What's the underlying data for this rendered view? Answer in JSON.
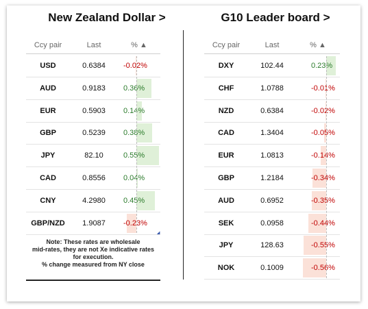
{
  "left": {
    "title": "New Zealand Dollar >",
    "headers": {
      "pair": "Ccy pair",
      "last": "Last",
      "pct": "% ▲"
    },
    "rows": [
      {
        "pair": "USD",
        "last": "0.6384",
        "pct": "-0.02%",
        "value": -0.02
      },
      {
        "pair": "AUD",
        "last": "0.9183",
        "pct": "0.36%",
        "value": 0.36
      },
      {
        "pair": "EUR",
        "last": "0.5903",
        "pct": "0.14%",
        "value": 0.14
      },
      {
        "pair": "GBP",
        "last": "0.5239",
        "pct": "0.38%",
        "value": 0.38
      },
      {
        "pair": "JPY",
        "last": "82.10",
        "pct": "0.55%",
        "value": 0.55
      },
      {
        "pair": "CAD",
        "last": "0.8556",
        "pct": "0.04%",
        "value": 0.04
      },
      {
        "pair": "CNY",
        "last": "4.2980",
        "pct": "0.45%",
        "value": 0.45
      },
      {
        "pair": "GBP/NZD",
        "last": "1.9087",
        "pct": "-0.23%",
        "value": -0.23
      }
    ],
    "note": [
      "Note: These rates are wholesale",
      "mid-rates, they are not Xe indicative rates",
      "for execution.",
      "% change measured from NY close"
    ]
  },
  "right": {
    "title": "G10 Leader board >",
    "headers": {
      "pair": "Ccy pair",
      "last": "Last",
      "pct": "% ▲"
    },
    "rows": [
      {
        "pair": "DXY",
        "last": "102.44",
        "pct": "0.23%",
        "value": 0.23
      },
      {
        "pair": "CHF",
        "last": "1.0788",
        "pct": "-0.01%",
        "value": -0.01
      },
      {
        "pair": "NZD",
        "last": "0.6384",
        "pct": "-0.02%",
        "value": -0.02
      },
      {
        "pair": "CAD",
        "last": "1.3404",
        "pct": "-0.05%",
        "value": -0.05
      },
      {
        "pair": "EUR",
        "last": "1.0813",
        "pct": "-0.14%",
        "value": -0.14
      },
      {
        "pair": "GBP",
        "last": "1.2184",
        "pct": "-0.34%",
        "value": -0.34
      },
      {
        "pair": "AUD",
        "last": "0.6952",
        "pct": "-0.35%",
        "value": -0.35
      },
      {
        "pair": "SEK",
        "last": "0.0958",
        "pct": "-0.44%",
        "value": -0.44
      },
      {
        "pair": "JPY",
        "last": "128.63",
        "pct": "-0.55%",
        "value": -0.55
      },
      {
        "pair": "NOK",
        "last": "0.1009",
        "pct": "-0.56%",
        "value": -0.56
      }
    ]
  },
  "colors": {
    "positive": "#dff0d8",
    "negative": "#fbe1d8",
    "pos_text": "#2a7a2a",
    "neg_text": "#c00000"
  }
}
